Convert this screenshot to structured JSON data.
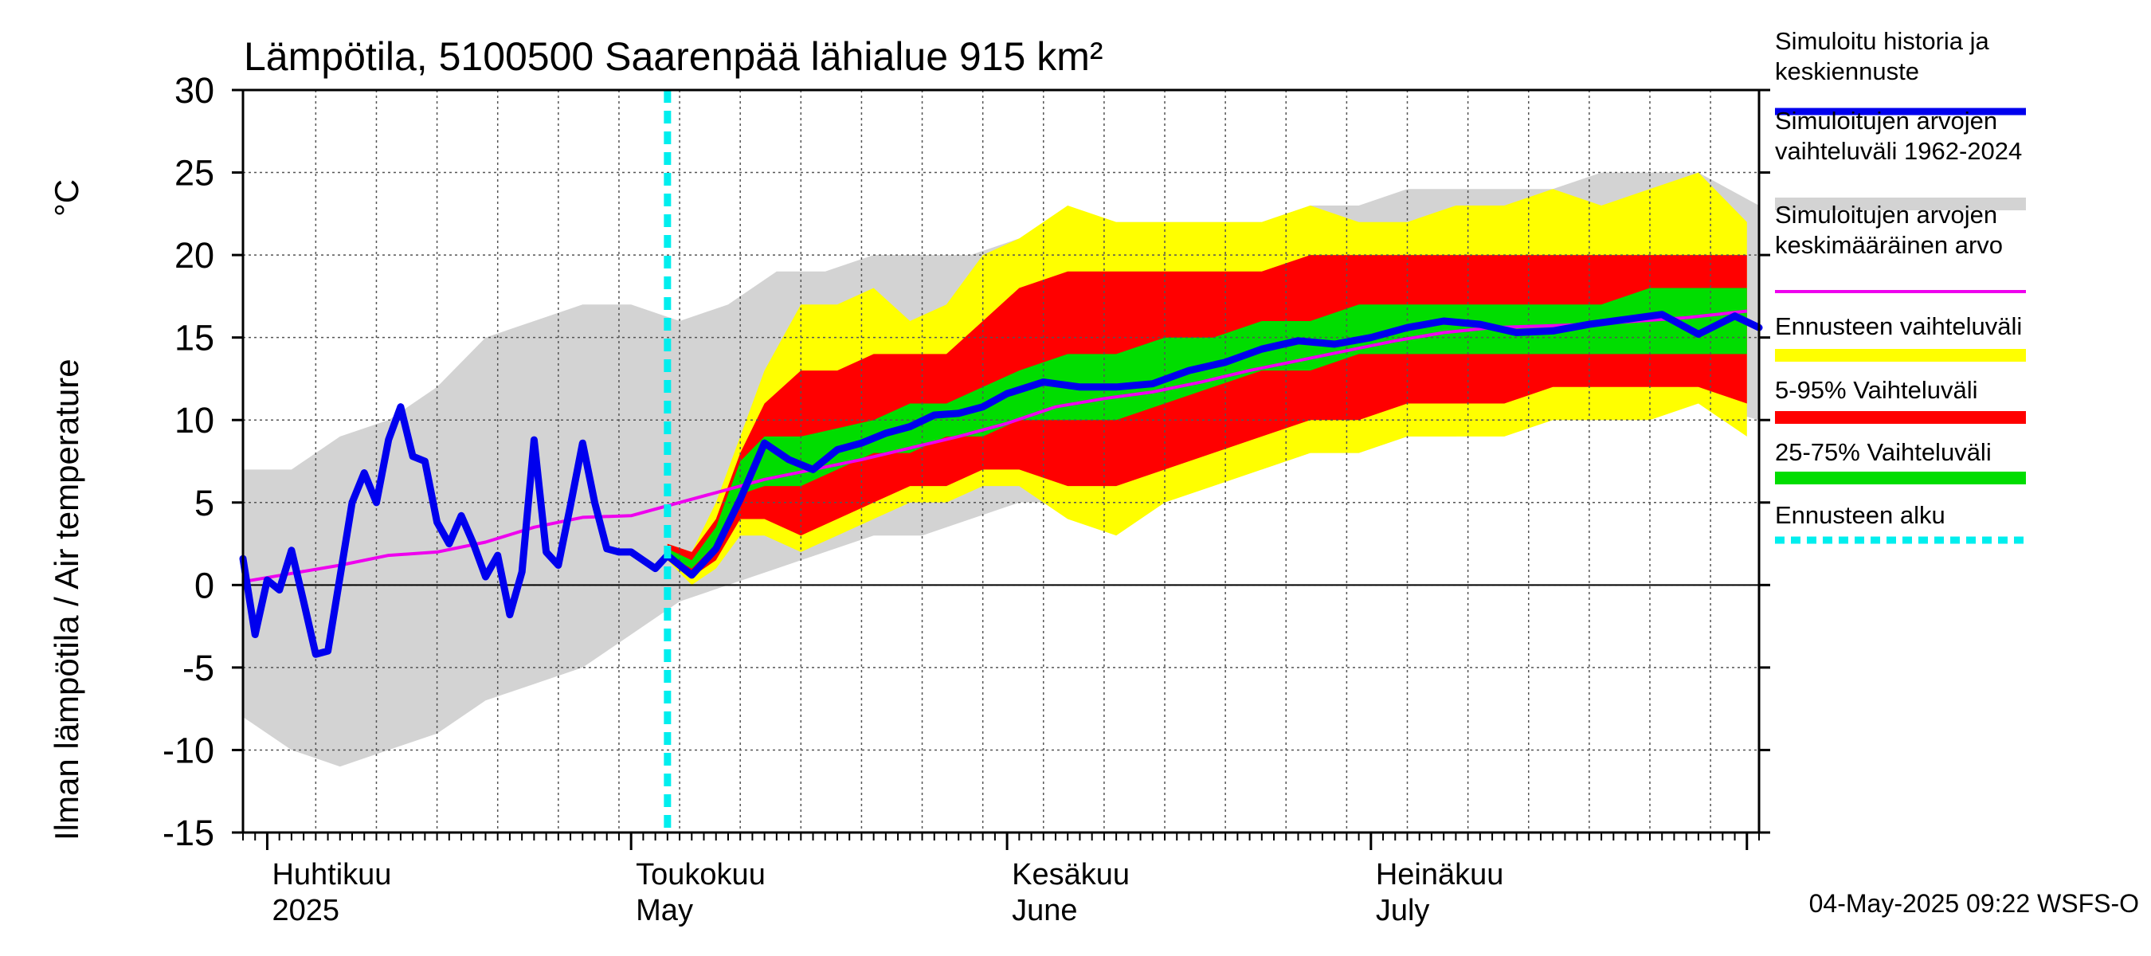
{
  "chart_data": {
    "type": "area",
    "title": "Lämpötila, 5100500 Saarenpää lähialue 915 km²",
    "ylabel": "Ilman lämpötila / Air temperature",
    "yunit": "°C",
    "ylim": [
      -15,
      30
    ],
    "yticks": [
      -15,
      -10,
      -5,
      0,
      5,
      10,
      15,
      20,
      25,
      30
    ],
    "xlim": [
      "2025-03-30",
      "2025-08-02"
    ],
    "grid": true,
    "legend_position": "right",
    "forecast_start": "2025-05-04",
    "months": [
      {
        "label": "Huhtikuu",
        "sublabel": "2025",
        "date": "2025-04-01"
      },
      {
        "label": "Toukokuu",
        "sublabel": "May",
        "date": "2025-05-01"
      },
      {
        "label": "Kesäkuu",
        "sublabel": "June",
        "date": "2025-06-01"
      },
      {
        "label": "Heinäkuu",
        "sublabel": "July",
        "date": "2025-07-01"
      }
    ],
    "legend": [
      {
        "label": "Simuloitu historia ja keskiennuste",
        "color": "#0000ee",
        "style": "line"
      },
      {
        "label": "Simuloitujen arvojen vaihteluväli 1962-2024",
        "color": "#d3d3d3",
        "style": "band"
      },
      {
        "label": "Simuloitujen arvojen keskimääräinen arvo",
        "color": "#ee00ee",
        "style": "thin"
      },
      {
        "label": "Ennusteen vaihteluväli",
        "color": "#ffff00",
        "style": "band"
      },
      {
        "label": "5-95% Vaihteluväli",
        "color": "#ff0000",
        "style": "band"
      },
      {
        "label": "25-75% Vaihteluväli",
        "color": "#00dd00",
        "style": "band"
      },
      {
        "label": "Ennusteen alku",
        "color": "#00eeee",
        "style": "dashed"
      }
    ],
    "series": {
      "history_range": {
        "x": [
          "2025-03-30",
          "2025-04-03",
          "2025-04-07",
          "2025-04-11",
          "2025-04-15",
          "2025-04-19",
          "2025-04-23",
          "2025-04-27",
          "2025-05-01",
          "2025-05-05",
          "2025-05-09",
          "2025-05-13",
          "2025-05-17",
          "2025-05-21",
          "2025-05-25",
          "2025-05-29",
          "2025-06-02",
          "2025-06-06",
          "2025-06-10",
          "2025-06-14",
          "2025-06-18",
          "2025-06-22",
          "2025-06-26",
          "2025-06-30",
          "2025-07-04",
          "2025-07-08",
          "2025-07-12",
          "2025-07-16",
          "2025-07-20",
          "2025-07-24",
          "2025-07-28",
          "2025-08-02"
        ],
        "low": [
          -8,
          -10,
          -11,
          -10,
          -9,
          -7,
          -6,
          -5,
          -3,
          -1,
          0,
          1,
          2,
          3,
          3,
          4,
          5,
          5,
          6,
          6,
          7,
          7,
          8,
          8,
          9,
          9,
          10,
          10,
          10,
          11,
          11,
          10
        ],
        "high": [
          7,
          7,
          9,
          10,
          12,
          15,
          16,
          17,
          17,
          16,
          17,
          19,
          19,
          20,
          20,
          20,
          21,
          21,
          22,
          22,
          22,
          22,
          23,
          23,
          24,
          24,
          24,
          24,
          25,
          25,
          25,
          23
        ]
      },
      "forecast_band_outer": {
        "x": [
          "2025-05-04",
          "2025-05-06",
          "2025-05-08",
          "2025-05-10",
          "2025-05-12",
          "2025-05-15",
          "2025-05-18",
          "2025-05-21",
          "2025-05-24",
          "2025-05-27",
          "2025-05-30",
          "2025-06-02",
          "2025-06-06",
          "2025-06-10",
          "2025-06-14",
          "2025-06-18",
          "2025-06-22",
          "2025-06-26",
          "2025-06-30",
          "2025-07-04",
          "2025-07-08",
          "2025-07-12",
          "2025-07-16",
          "2025-07-20",
          "2025-07-24",
          "2025-07-28",
          "2025-08-01"
        ],
        "low": [
          1.5,
          0,
          1,
          3,
          3,
          2,
          3,
          4,
          5,
          5,
          6,
          6,
          4,
          3,
          5,
          6,
          7,
          8,
          8,
          9,
          9,
          9,
          10,
          10,
          10,
          11,
          9
        ],
        "high": [
          2.5,
          2,
          5,
          9,
          13,
          17,
          17,
          18,
          16,
          17,
          20,
          21,
          23,
          22,
          22,
          22,
          22,
          23,
          22,
          22,
          23,
          23,
          24,
          23,
          24,
          25,
          22
        ]
      },
      "forecast_band_5_95": {
        "x": [
          "2025-05-04",
          "2025-05-06",
          "2025-05-08",
          "2025-05-10",
          "2025-05-12",
          "2025-05-15",
          "2025-05-18",
          "2025-05-21",
          "2025-05-24",
          "2025-05-27",
          "2025-05-30",
          "2025-06-02",
          "2025-06-06",
          "2025-06-10",
          "2025-06-14",
          "2025-06-18",
          "2025-06-22",
          "2025-06-26",
          "2025-06-30",
          "2025-07-04",
          "2025-07-08",
          "2025-07-12",
          "2025-07-16",
          "2025-07-20",
          "2025-07-24",
          "2025-07-28",
          "2025-08-01"
        ],
        "low": [
          1.5,
          0.5,
          1.5,
          4,
          4,
          3,
          4,
          5,
          6,
          6,
          7,
          7,
          6,
          6,
          7,
          8,
          9,
          10,
          10,
          11,
          11,
          11,
          12,
          12,
          12,
          12,
          11
        ],
        "high": [
          2.5,
          2,
          4,
          8,
          11,
          13,
          13,
          14,
          14,
          14,
          16,
          18,
          19,
          19,
          19,
          19,
          19,
          20,
          20,
          20,
          20,
          20,
          20,
          20,
          20,
          20,
          20
        ]
      },
      "forecast_band_25_75": {
        "x": [
          "2025-05-04",
          "2025-05-06",
          "2025-05-08",
          "2025-05-10",
          "2025-05-12",
          "2025-05-15",
          "2025-05-18",
          "2025-05-21",
          "2025-05-24",
          "2025-05-27",
          "2025-05-30",
          "2025-06-02",
          "2025-06-06",
          "2025-06-10",
          "2025-06-14",
          "2025-06-18",
          "2025-06-22",
          "2025-06-26",
          "2025-06-30",
          "2025-07-04",
          "2025-07-08",
          "2025-07-12",
          "2025-07-16",
          "2025-07-20",
          "2025-07-24",
          "2025-07-28",
          "2025-08-01"
        ],
        "low": [
          1.8,
          1,
          2.5,
          5.5,
          6,
          6,
          7,
          8,
          8,
          9,
          9,
          10,
          10,
          10,
          11,
          12,
          13,
          13,
          14,
          14,
          14,
          14,
          14,
          14,
          14,
          14,
          14
        ],
        "high": [
          2.2,
          1.5,
          3.5,
          7.5,
          9,
          9,
          9.5,
          10,
          11,
          11,
          12,
          13,
          14,
          14,
          15,
          15,
          16,
          16,
          17,
          17,
          17,
          17,
          17,
          17,
          18,
          18,
          18
        ]
      },
      "mean_1962_2024": {
        "x": [
          "2025-03-30",
          "2025-04-03",
          "2025-04-07",
          "2025-04-11",
          "2025-04-15",
          "2025-04-19",
          "2025-04-23",
          "2025-04-27",
          "2025-05-01",
          "2025-05-04",
          "2025-05-08",
          "2025-05-12",
          "2025-05-16",
          "2025-05-20",
          "2025-05-24",
          "2025-05-28",
          "2025-06-01",
          "2025-06-05",
          "2025-06-09",
          "2025-06-13",
          "2025-06-17",
          "2025-06-21",
          "2025-06-25",
          "2025-06-29",
          "2025-07-03",
          "2025-07-07",
          "2025-07-11",
          "2025-07-15",
          "2025-07-19",
          "2025-07-23",
          "2025-07-27",
          "2025-08-01"
        ],
        "y": [
          0.2,
          0.7,
          1.2,
          1.8,
          2.0,
          2.6,
          3.5,
          4.1,
          4.2,
          4.8,
          5.6,
          6.4,
          7.0,
          7.6,
          8.3,
          9.0,
          9.8,
          10.8,
          11.3,
          11.7,
          12.3,
          13.0,
          13.6,
          14.2,
          14.8,
          15.3,
          15.6,
          15.7,
          15.8,
          16.0,
          16.2,
          16.6
        ]
      },
      "simulated": {
        "x": [
          "2025-03-30",
          "2025-03-31",
          "2025-04-01",
          "2025-04-02",
          "2025-04-03",
          "2025-04-04",
          "2025-04-05",
          "2025-04-06",
          "2025-04-07",
          "2025-04-08",
          "2025-04-09",
          "2025-04-10",
          "2025-04-11",
          "2025-04-12",
          "2025-04-13",
          "2025-04-14",
          "2025-04-15",
          "2025-04-16",
          "2025-04-17",
          "2025-04-18",
          "2025-04-19",
          "2025-04-20",
          "2025-04-21",
          "2025-04-22",
          "2025-04-23",
          "2025-04-24",
          "2025-04-25",
          "2025-04-26",
          "2025-04-27",
          "2025-04-28",
          "2025-04-29",
          "2025-04-30",
          "2025-05-01",
          "2025-05-02",
          "2025-05-03",
          "2025-05-04",
          "2025-05-06",
          "2025-05-08",
          "2025-05-10",
          "2025-05-12",
          "2025-05-14",
          "2025-05-16",
          "2025-05-18",
          "2025-05-20",
          "2025-05-22",
          "2025-05-24",
          "2025-05-26",
          "2025-05-28",
          "2025-05-30",
          "2025-06-01",
          "2025-06-04",
          "2025-06-07",
          "2025-06-10",
          "2025-06-13",
          "2025-06-16",
          "2025-06-19",
          "2025-06-22",
          "2025-06-25",
          "2025-06-28",
          "2025-07-01",
          "2025-07-04",
          "2025-07-07",
          "2025-07-10",
          "2025-07-13",
          "2025-07-16",
          "2025-07-19",
          "2025-07-22",
          "2025-07-25",
          "2025-07-28",
          "2025-07-31",
          "2025-08-02"
        ],
        "y": [
          1.6,
          -3.0,
          0.3,
          -0.3,
          2.1,
          -1.0,
          -4.2,
          -4.0,
          0.5,
          5.0,
          6.8,
          5.0,
          8.8,
          10.8,
          7.8,
          7.5,
          3.8,
          2.5,
          4.2,
          2.5,
          0.5,
          1.8,
          -1.8,
          0.8,
          8.8,
          2.0,
          1.2,
          4.8,
          8.6,
          5.0,
          2.2,
          2.0,
          2.0,
          1.5,
          1.0,
          1.8,
          0.6,
          2.2,
          5.2,
          8.6,
          7.6,
          7.0,
          8.2,
          8.6,
          9.2,
          9.6,
          10.3,
          10.4,
          10.8,
          11.6,
          12.3,
          12.0,
          12.0,
          12.2,
          13.0,
          13.5,
          14.3,
          14.8,
          14.6,
          15.0,
          15.6,
          16.0,
          15.8,
          15.3,
          15.4,
          15.8,
          16.1,
          16.4,
          15.2,
          16.3,
          15.6
        ]
      }
    }
  },
  "stamp": "04-May-2025 09:22 WSFS-O"
}
